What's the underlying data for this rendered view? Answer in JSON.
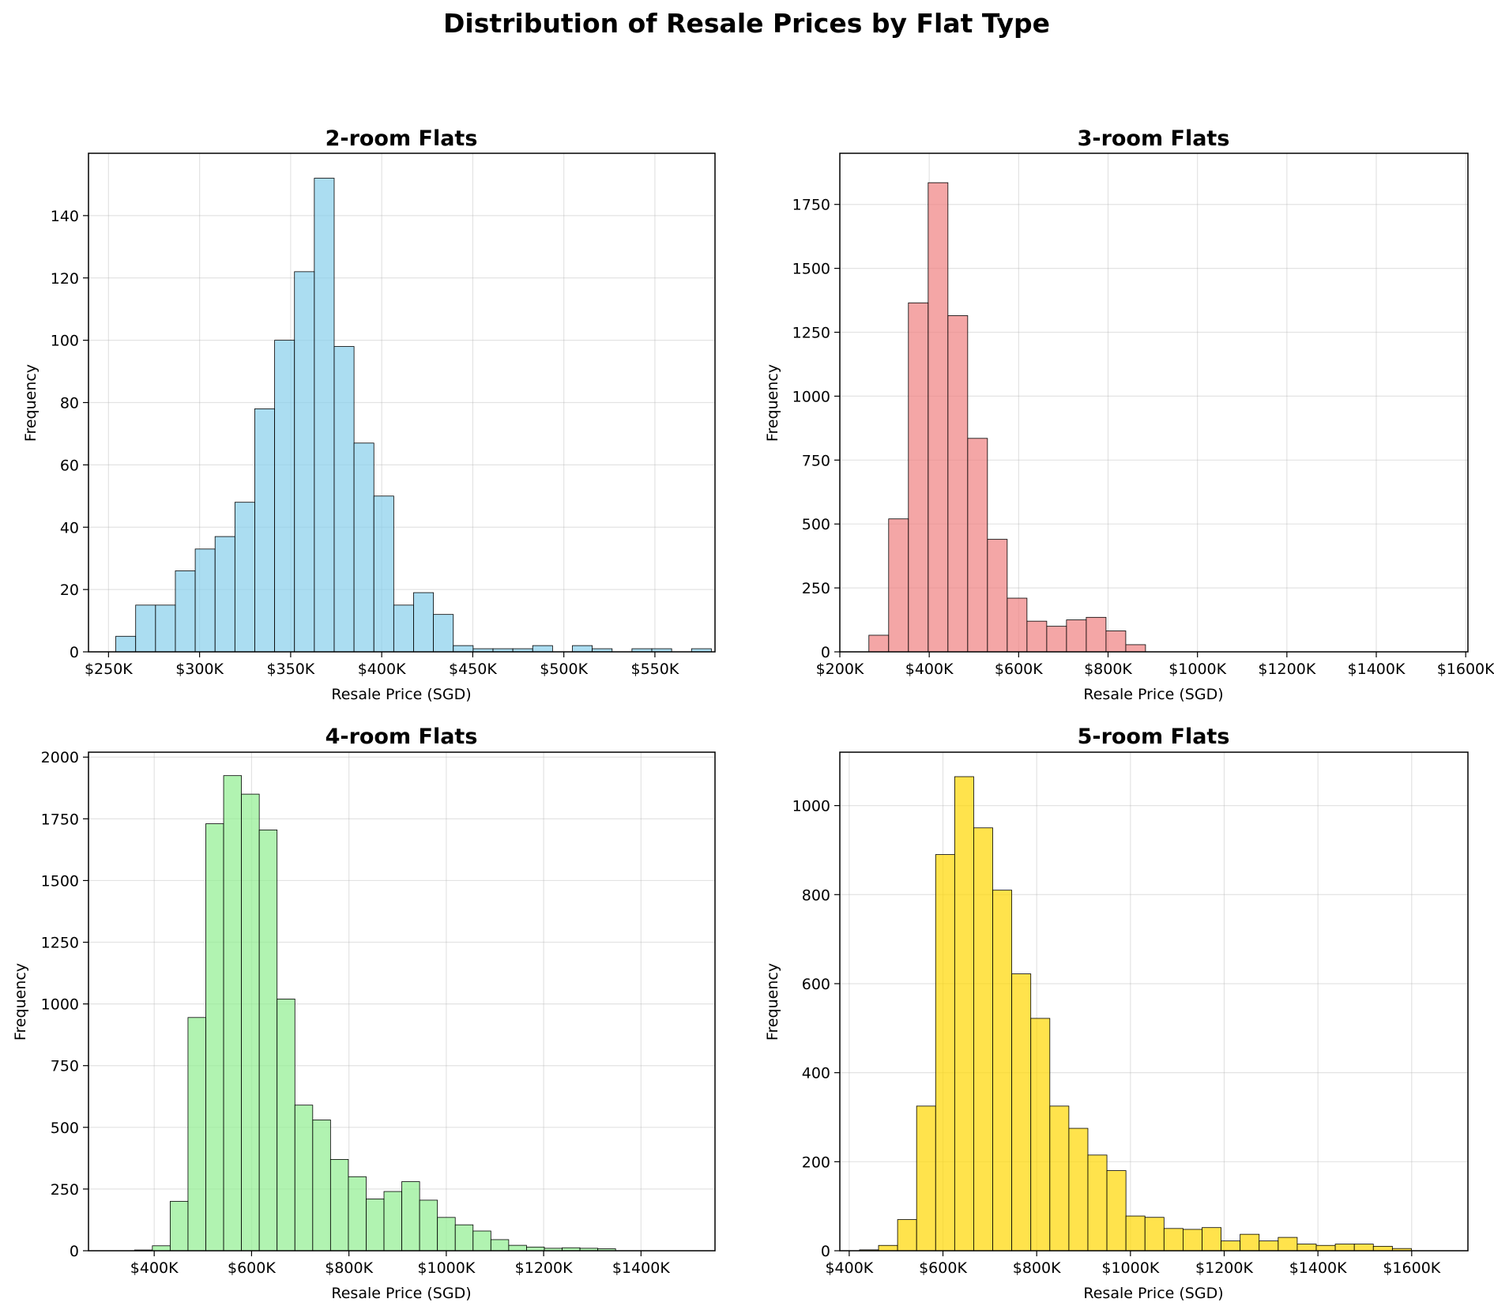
{
  "figure": {
    "title": "Distribution of Resale Prices by Flat Type"
  },
  "chart_data": [
    {
      "type": "bar",
      "title": "2-room Flats",
      "xlabel": "Resale Price (SGD)",
      "ylabel": "Frequency",
      "color": "#87CEEB",
      "xlim": [
        239,
        583
      ],
      "ylim": [
        0,
        160
      ],
      "x_unit": "thousand SGD",
      "xticks": [
        250,
        300,
        350,
        400,
        450,
        500,
        550
      ],
      "xtick_labels": [
        "$250K",
        "$300K",
        "$350K",
        "$400K",
        "$450K",
        "$500K",
        "$550K"
      ],
      "yticks": [
        0,
        20,
        40,
        60,
        80,
        100,
        120,
        140
      ],
      "ytick_labels": [
        "0",
        "20",
        "40",
        "60",
        "80",
        "100",
        "120",
        "140"
      ],
      "bin_start": 254,
      "bin_width": 10.9,
      "values": [
        5,
        15,
        15,
        26,
        33,
        37,
        48,
        78,
        100,
        122,
        152,
        98,
        67,
        50,
        15,
        19,
        12,
        2,
        1,
        1,
        1,
        2,
        0,
        2,
        1,
        0,
        1,
        1,
        0,
        1
      ],
      "grid": true
    },
    {
      "type": "bar",
      "title": "3-room Flats",
      "xlabel": "Resale Price (SGD)",
      "ylabel": "Frequency",
      "color": "#F08080",
      "xlim": [
        200,
        1605
      ],
      "ylim": [
        0,
        1950
      ],
      "x_unit": "thousand SGD",
      "xticks": [
        200,
        400,
        600,
        800,
        1000,
        1200,
        1400,
        1600
      ],
      "xtick_labels": [
        "$200K",
        "$400K",
        "$600K",
        "$800K",
        "$1000K",
        "$1200K",
        "$1400K",
        "$1600K"
      ],
      "yticks": [
        0,
        250,
        500,
        750,
        1000,
        1250,
        1500,
        1750
      ],
      "ytick_labels": [
        "0",
        "250",
        "500",
        "750",
        "1000",
        "1250",
        "1500",
        "1750"
      ],
      "bin_start": 265,
      "bin_width": 44.2,
      "values": [
        65,
        520,
        1365,
        1835,
        1315,
        835,
        440,
        210,
        120,
        100,
        125,
        135,
        82,
        28
      ],
      "grid": true
    },
    {
      "type": "bar",
      "title": "4-room Flats",
      "xlabel": "Resale Price (SGD)",
      "ylabel": "Frequency",
      "color": "#90EE90",
      "xlim": [
        265,
        1552
      ],
      "ylim": [
        0,
        2020
      ],
      "x_unit": "thousand SGD",
      "xticks": [
        400,
        600,
        800,
        1000,
        1200,
        1400
      ],
      "xtick_labels": [
        "$400K",
        "$600K",
        "$800K",
        "$1000K",
        "$1200K",
        "$1400K"
      ],
      "yticks": [
        0,
        250,
        500,
        750,
        1000,
        1250,
        1500,
        1750,
        2000
      ],
      "ytick_labels": [
        "0",
        "250",
        "500",
        "750",
        "1000",
        "1250",
        "1500",
        "1750",
        "2000"
      ],
      "bin_start": 323,
      "bin_width": 36.6,
      "values": [
        0,
        3,
        20,
        200,
        945,
        1730,
        1925,
        1850,
        1705,
        1020,
        590,
        530,
        370,
        300,
        210,
        240,
        280,
        205,
        135,
        105,
        80,
        45,
        22,
        15,
        10,
        12,
        10,
        8
      ],
      "grid": true
    },
    {
      "type": "bar",
      "title": "5-room Flats",
      "xlabel": "Resale Price (SGD)",
      "ylabel": "Frequency",
      "color": "#FFD700",
      "xlim": [
        380,
        1720
      ],
      "ylim": [
        0,
        1120
      ],
      "x_unit": "thousand SGD",
      "xticks": [
        400,
        600,
        800,
        1000,
        1200,
        1400,
        1600
      ],
      "xtick_labels": [
        "$400K",
        "$600K",
        "$800K",
        "$1000K",
        "$1200K",
        "$1400K",
        "$1600K"
      ],
      "yticks": [
        0,
        200,
        400,
        600,
        800,
        1000
      ],
      "ytick_labels": [
        "0",
        "200",
        "400",
        "600",
        "800",
        "1000"
      ],
      "bin_start": 422,
      "bin_width": 40.6,
      "values": [
        2,
        12,
        70,
        325,
        890,
        1065,
        950,
        810,
        622,
        522,
        325,
        275,
        215,
        180,
        78,
        75,
        50,
        48,
        52,
        22,
        37,
        22,
        30,
        15,
        12,
        15,
        15,
        10,
        5
      ],
      "grid": true
    }
  ]
}
